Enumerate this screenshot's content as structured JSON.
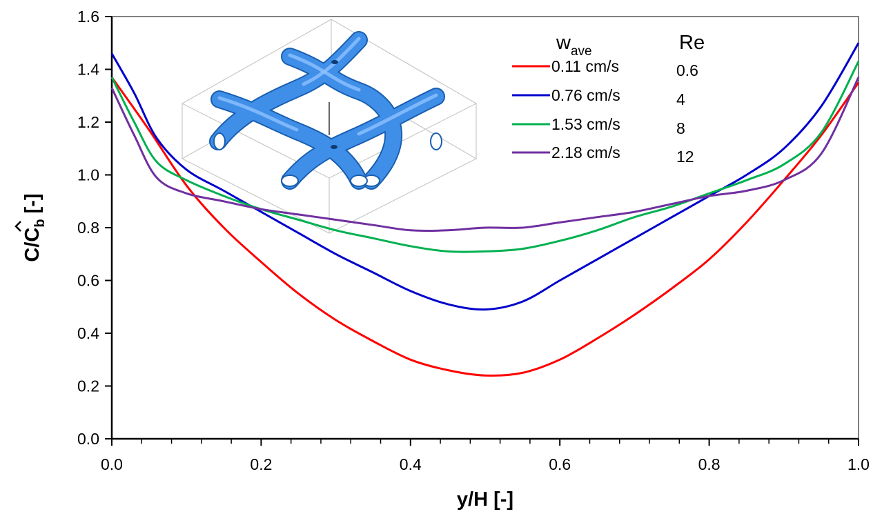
{
  "chart_data": {
    "type": "line",
    "xlabel": "y/H [-]",
    "ylabel": {
      "main": "C/",
      "hat_letter": "C",
      "sub": "b",
      "unit": " [-]"
    },
    "xlim": [
      0.0,
      1.0
    ],
    "ylim": [
      0.0,
      1.6
    ],
    "x_ticks": [
      "0.0",
      "0.2",
      "0.4",
      "0.6",
      "0.8",
      "1.0"
    ],
    "y_ticks": [
      "0.0",
      "0.2",
      "0.4",
      "0.6",
      "0.8",
      "1.0",
      "1.2",
      "1.4",
      "1.6"
    ],
    "grid": false,
    "legend": {
      "placement": "top-center",
      "header_w": "w",
      "header_w_sub": "ave",
      "header_re": "Re",
      "entries": [
        {
          "label": "0.11 cm/s",
          "re": "0.6"
        },
        {
          "label": "0.76 cm/s",
          "re": "4"
        },
        {
          "label": "1.53 cm/s",
          "re": "8"
        },
        {
          "label": "2.18 cm/s",
          "re": "12"
        }
      ]
    },
    "inset": "woven-filament-spacer-cell",
    "series": [
      {
        "name": "0.11 cm/s",
        "color": "#ff0000",
        "points": [
          [
            0.0,
            1.37
          ],
          [
            0.05,
            1.17
          ],
          [
            0.1,
            0.96
          ],
          [
            0.15,
            0.8
          ],
          [
            0.2,
            0.67
          ],
          [
            0.25,
            0.55
          ],
          [
            0.3,
            0.45
          ],
          [
            0.35,
            0.37
          ],
          [
            0.4,
            0.3
          ],
          [
            0.45,
            0.26
          ],
          [
            0.5,
            0.24
          ],
          [
            0.55,
            0.25
          ],
          [
            0.6,
            0.3
          ],
          [
            0.65,
            0.38
          ],
          [
            0.7,
            0.47
          ],
          [
            0.75,
            0.57
          ],
          [
            0.8,
            0.68
          ],
          [
            0.85,
            0.82
          ],
          [
            0.9,
            0.98
          ],
          [
            0.95,
            1.15
          ],
          [
            1.0,
            1.35
          ]
        ]
      },
      {
        "name": "0.76 cm/s",
        "color": "#0000cc",
        "points": [
          [
            0.0,
            1.46
          ],
          [
            0.03,
            1.31
          ],
          [
            0.06,
            1.14
          ],
          [
            0.1,
            1.02
          ],
          [
            0.15,
            0.94
          ],
          [
            0.2,
            0.86
          ],
          [
            0.25,
            0.78
          ],
          [
            0.3,
            0.7
          ],
          [
            0.35,
            0.63
          ],
          [
            0.4,
            0.56
          ],
          [
            0.45,
            0.51
          ],
          [
            0.5,
            0.49
          ],
          [
            0.55,
            0.52
          ],
          [
            0.6,
            0.6
          ],
          [
            0.65,
            0.68
          ],
          [
            0.7,
            0.76
          ],
          [
            0.75,
            0.84
          ],
          [
            0.8,
            0.92
          ],
          [
            0.85,
            1.0
          ],
          [
            0.9,
            1.1
          ],
          [
            0.95,
            1.26
          ],
          [
            1.0,
            1.5
          ]
        ]
      },
      {
        "name": "1.53 cm/s",
        "color": "#00b050",
        "points": [
          [
            0.0,
            1.37
          ],
          [
            0.03,
            1.2
          ],
          [
            0.06,
            1.05
          ],
          [
            0.1,
            0.98
          ],
          [
            0.15,
            0.92
          ],
          [
            0.2,
            0.87
          ],
          [
            0.25,
            0.83
          ],
          [
            0.3,
            0.79
          ],
          [
            0.35,
            0.76
          ],
          [
            0.4,
            0.73
          ],
          [
            0.45,
            0.71
          ],
          [
            0.5,
            0.71
          ],
          [
            0.55,
            0.72
          ],
          [
            0.6,
            0.75
          ],
          [
            0.65,
            0.79
          ],
          [
            0.7,
            0.84
          ],
          [
            0.75,
            0.88
          ],
          [
            0.8,
            0.93
          ],
          [
            0.85,
            0.98
          ],
          [
            0.9,
            1.04
          ],
          [
            0.95,
            1.16
          ],
          [
            1.0,
            1.43
          ]
        ]
      },
      {
        "name": "2.18 cm/s",
        "color": "#7030a0",
        "points": [
          [
            0.0,
            1.33
          ],
          [
            0.03,
            1.15
          ],
          [
            0.06,
            0.99
          ],
          [
            0.1,
            0.93
          ],
          [
            0.15,
            0.9
          ],
          [
            0.2,
            0.87
          ],
          [
            0.25,
            0.85
          ],
          [
            0.3,
            0.83
          ],
          [
            0.35,
            0.81
          ],
          [
            0.4,
            0.79
          ],
          [
            0.45,
            0.79
          ],
          [
            0.5,
            0.8
          ],
          [
            0.55,
            0.8
          ],
          [
            0.6,
            0.82
          ],
          [
            0.65,
            0.84
          ],
          [
            0.7,
            0.86
          ],
          [
            0.75,
            0.89
          ],
          [
            0.8,
            0.92
          ],
          [
            0.85,
            0.94
          ],
          [
            0.9,
            0.98
          ],
          [
            0.95,
            1.08
          ],
          [
            1.0,
            1.37
          ]
        ]
      }
    ]
  }
}
